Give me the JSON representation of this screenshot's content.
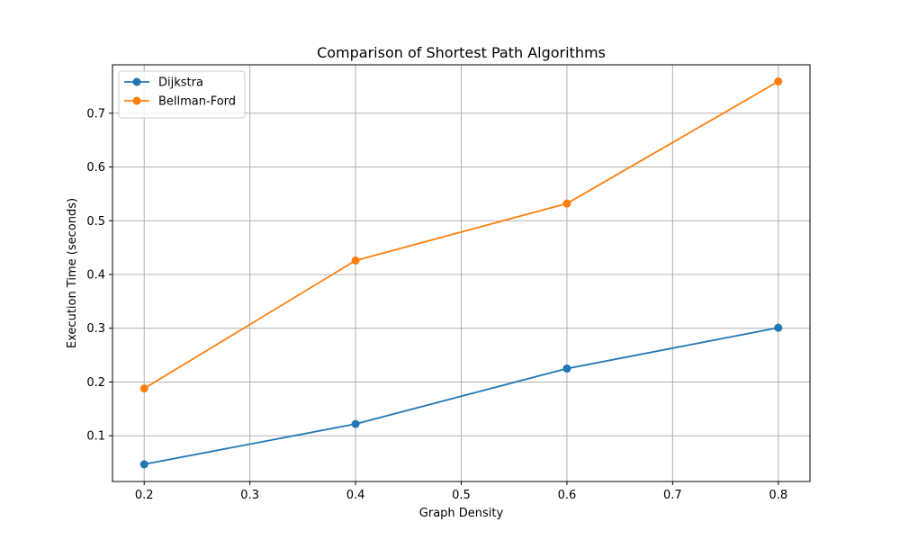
{
  "chart_data": {
    "type": "line",
    "title": "Comparison of Shortest Path Algorithms",
    "xlabel": "Graph Density",
    "ylabel": "Execution Time (seconds)",
    "xlim": [
      0.17,
      0.83
    ],
    "ylim": [
      0.015,
      0.79
    ],
    "xticks": [
      0.2,
      0.3,
      0.4,
      0.5,
      0.6,
      0.7,
      0.8
    ],
    "yticks": [
      0.1,
      0.2,
      0.3,
      0.4,
      0.5,
      0.6,
      0.7
    ],
    "xtick_labels": [
      "0.2",
      "0.3",
      "0.4",
      "0.5",
      "0.6",
      "0.7",
      "0.8"
    ],
    "ytick_labels": [
      "0.1",
      "0.2",
      "0.3",
      "0.4",
      "0.5",
      "0.6",
      "0.7"
    ],
    "grid": true,
    "legend_position": "top-left",
    "x": [
      0.2,
      0.4,
      0.6,
      0.8
    ],
    "series": [
      {
        "name": "Dijkstra",
        "color": "#1f77b4",
        "marker": "circle",
        "values": [
          0.047,
          0.122,
          0.225,
          0.301
        ]
      },
      {
        "name": "Bellman-Ford",
        "color": "#ff7f0e",
        "marker": "circle",
        "values": [
          0.188,
          0.426,
          0.532,
          0.759
        ]
      }
    ]
  }
}
